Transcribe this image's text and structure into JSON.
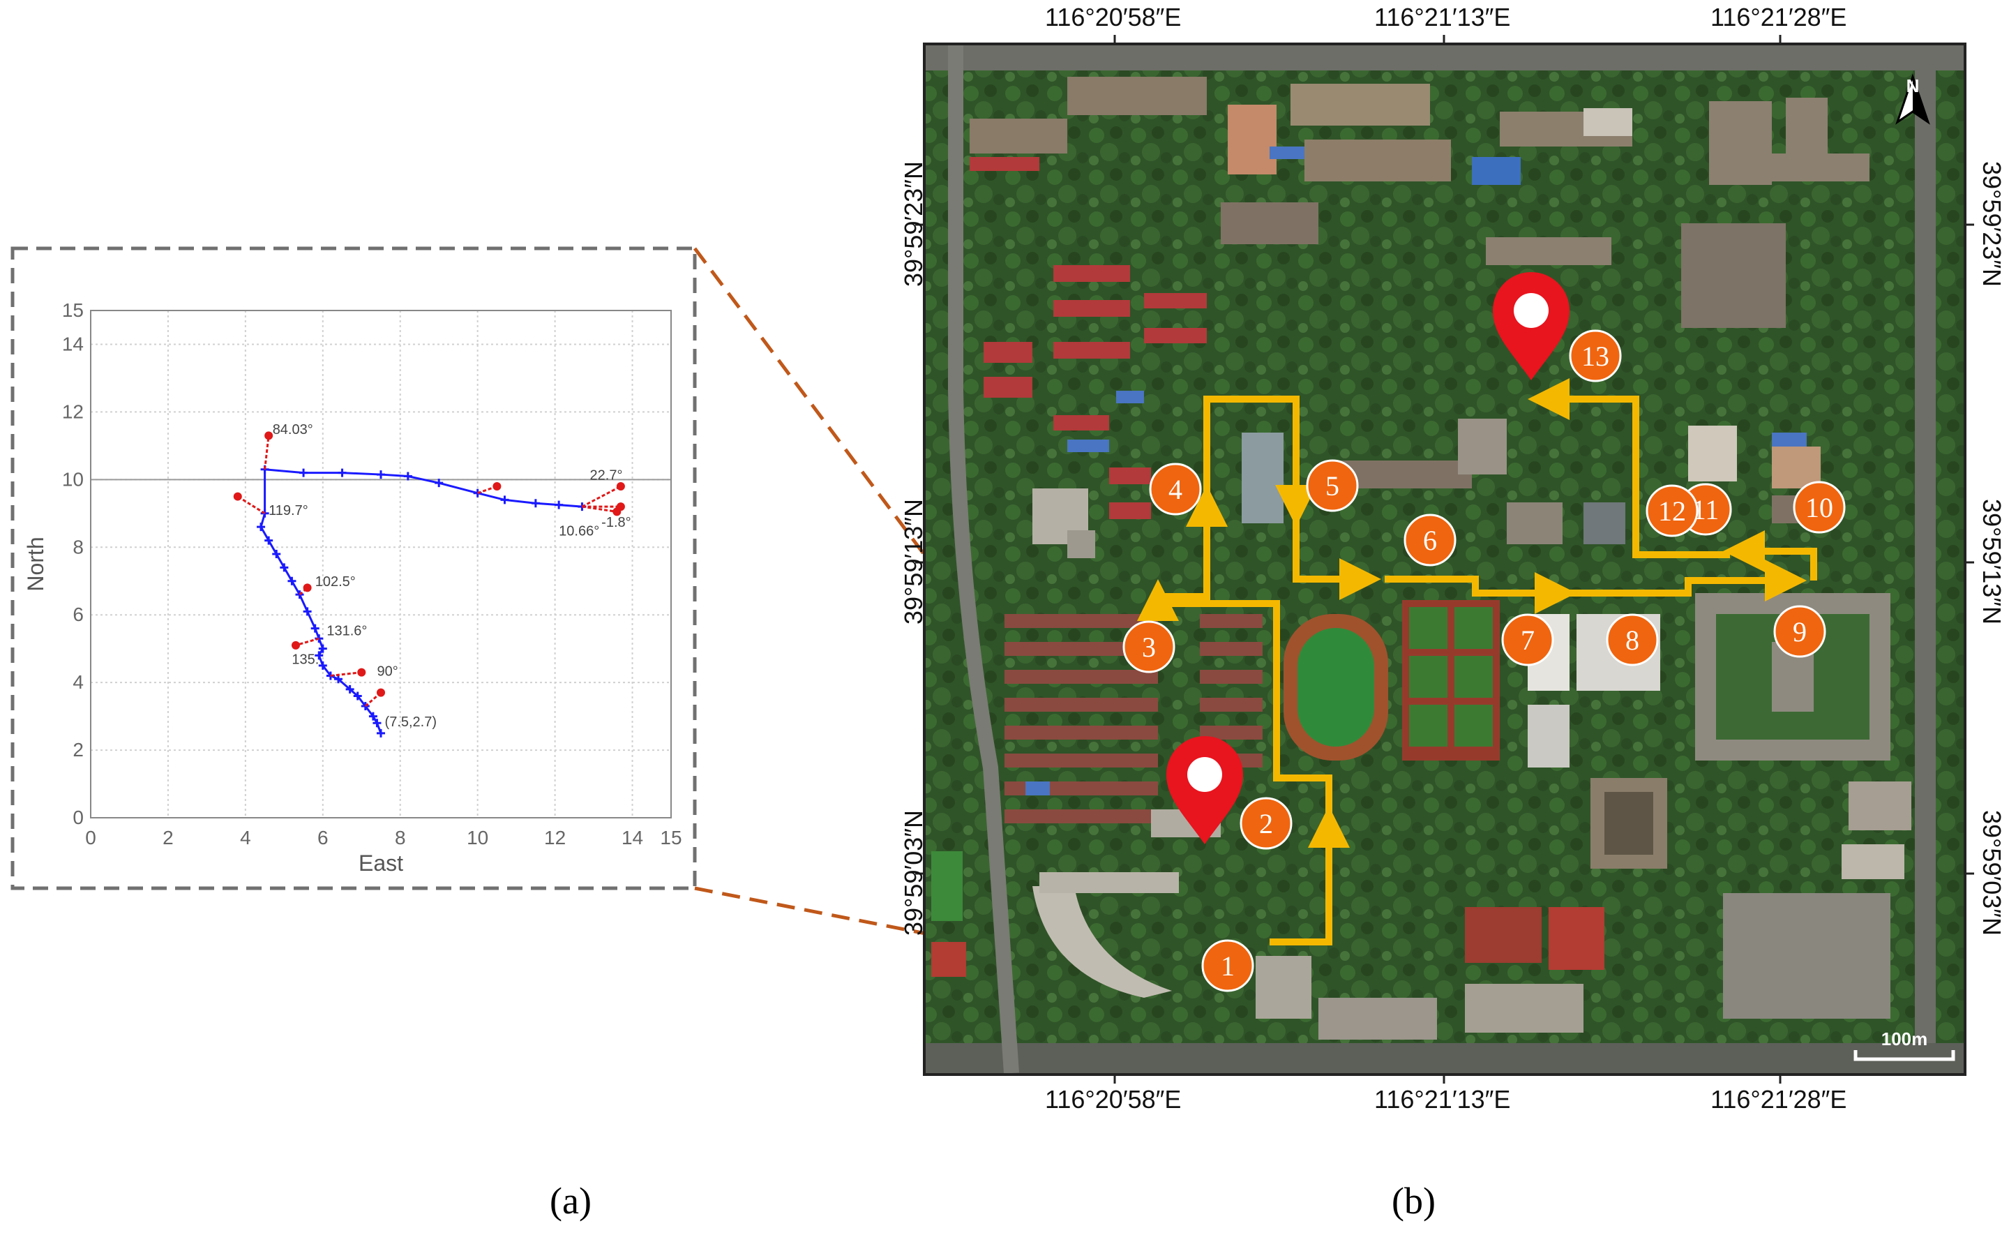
{
  "panel_a": {
    "caption": "(a)",
    "chart_data": {
      "type": "line",
      "xlabel": "East",
      "ylabel": "North",
      "xlim": [
        0,
        15
      ],
      "ylim": [
        0,
        15
      ],
      "xticks": [
        "0",
        "2",
        "4",
        "6",
        "8",
        "10",
        "12",
        "14",
        "15"
      ],
      "yticks": [
        "0",
        "2",
        "4",
        "6",
        "8",
        "10",
        "12",
        "14",
        "15"
      ],
      "grid": true,
      "series": [
        {
          "name": "trajectory",
          "color": "#1a1aff",
          "points": [
            [
              7.5,
              2.5
            ],
            [
              7.4,
              2.8
            ],
            [
              7.3,
              3.0
            ],
            [
              7.1,
              3.3
            ],
            [
              6.9,
              3.6
            ],
            [
              6.7,
              3.8
            ],
            [
              6.4,
              4.1
            ],
            [
              6.2,
              4.2
            ],
            [
              6.0,
              4.5
            ],
            [
              5.9,
              4.8
            ],
            [
              6.0,
              5.0
            ],
            [
              5.9,
              5.3
            ],
            [
              5.8,
              5.6
            ],
            [
              5.6,
              6.1
            ],
            [
              5.4,
              6.6
            ],
            [
              5.2,
              7.0
            ],
            [
              5.0,
              7.4
            ],
            [
              4.8,
              7.8
            ],
            [
              4.6,
              8.2
            ],
            [
              4.4,
              8.6
            ],
            [
              4.5,
              9.0
            ],
            [
              4.5,
              10.3
            ],
            [
              5.5,
              10.2
            ],
            [
              6.5,
              10.2
            ],
            [
              7.5,
              10.15
            ],
            [
              8.2,
              10.1
            ],
            [
              9.0,
              9.9
            ],
            [
              10.0,
              9.6
            ],
            [
              10.7,
              9.4
            ],
            [
              11.5,
              9.3
            ],
            [
              12.1,
              9.25
            ],
            [
              12.7,
              9.2
            ]
          ]
        },
        {
          "name": "heading-markers",
          "color": "#e01818",
          "segments": [
            [
              [
                4.5,
                10.3
              ],
              [
                4.6,
                11.3
              ]
            ],
            [
              [
                4.5,
                9.0
              ],
              [
                3.8,
                9.5
              ]
            ],
            [
              [
                10.0,
                9.6
              ],
              [
                10.5,
                9.8
              ]
            ],
            [
              [
                12.7,
                9.2
              ],
              [
                13.7,
                9.8
              ]
            ],
            [
              [
                12.7,
                9.2
              ],
              [
                13.7,
                9.2
              ]
            ],
            [
              [
                12.7,
                9.2
              ],
              [
                13.6,
                9.05
              ]
            ],
            [
              [
                5.4,
                6.6
              ],
              [
                5.6,
                6.8
              ]
            ],
            [
              [
                5.9,
                5.3
              ],
              [
                5.3,
                5.1
              ]
            ],
            [
              [
                6.2,
                4.2
              ],
              [
                7.0,
                4.3
              ]
            ],
            [
              [
                7.1,
                3.3
              ],
              [
                7.5,
                3.7
              ]
            ]
          ]
        }
      ],
      "annotations": [
        {
          "text": "84.03°",
          "x": 4.7,
          "y": 11.35
        },
        {
          "text": "119.7°",
          "x": 4.6,
          "y": 8.95
        },
        {
          "text": "22.7°",
          "x": 12.9,
          "y": 10.0
        },
        {
          "text": "-1.8°",
          "x": 13.2,
          "y": 8.6
        },
        {
          "text": "10.66°",
          "x": 12.1,
          "y": 8.35
        },
        {
          "text": "102.5°",
          "x": 5.8,
          "y": 6.85
        },
        {
          "text": "131.6°",
          "x": 6.1,
          "y": 5.4
        },
        {
          "text": "135.",
          "x": 5.2,
          "y": 4.55
        },
        {
          "text": "90°",
          "x": 7.4,
          "y": 4.2
        },
        {
          "text": "(7.5,2.7)",
          "x": 7.6,
          "y": 2.7
        }
      ]
    }
  },
  "panel_b": {
    "caption": "(b)",
    "top_labels": [
      "116°20′58″E",
      "116°21′13″E",
      "116°21′28″E"
    ],
    "bottom_labels": [
      "116°20′58″E",
      "116°21′13″E",
      "116°21′28″E"
    ],
    "left_labels": [
      "39°59′23″N",
      "39°59′13″N",
      "39°59′03″N"
    ],
    "right_labels": [
      "39°59′23″N",
      "39°59′13″N",
      "39°59′03″N"
    ],
    "north_label": "N",
    "scale_label": "100m",
    "route_color": "#f5b800",
    "waypoint_color": "#f0650f",
    "pin_color": "#e8141e",
    "waypoints": [
      "1",
      "2",
      "3",
      "4",
      "5",
      "6",
      "7",
      "8",
      "9",
      "10",
      "11",
      "12",
      "13"
    ]
  }
}
